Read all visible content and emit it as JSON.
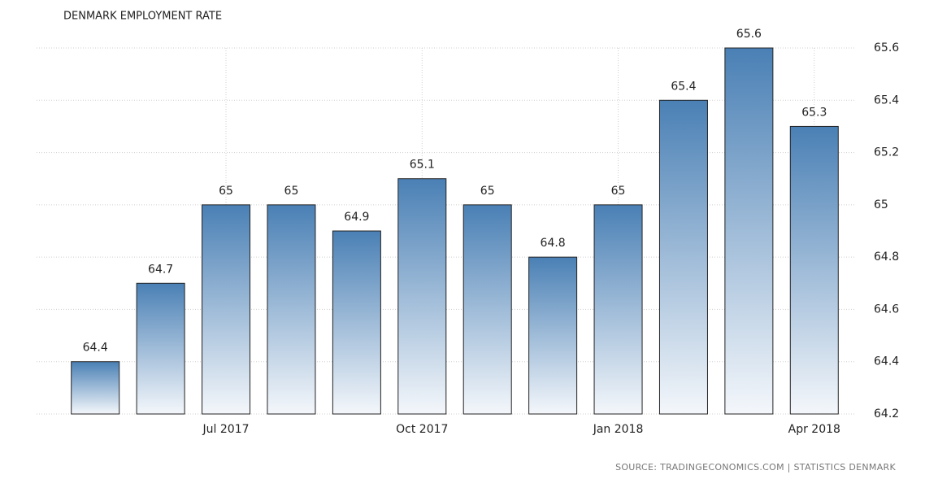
{
  "chart_data": {
    "type": "bar",
    "title": "DENMARK EMPLOYMENT RATE",
    "categories": [
      null,
      null,
      "Jul 2017",
      null,
      null,
      "Oct 2017",
      null,
      null,
      "Jan 2018",
      null,
      null,
      "Apr 2018"
    ],
    "values": [
      64.4,
      64.7,
      65,
      65,
      64.9,
      65.1,
      65,
      64.8,
      65,
      65.4,
      65.6,
      65.3
    ],
    "color": "#4a80b5",
    "ylim": [
      64.2,
      65.6
    ],
    "yticks": [
      64.2,
      64.4,
      64.6,
      64.8,
      65,
      65.2,
      65.4,
      65.6
    ],
    "grid": true,
    "source": "SOURCE: TRADINGECONOMICS.COM | STATISTICS DENMARK"
  }
}
